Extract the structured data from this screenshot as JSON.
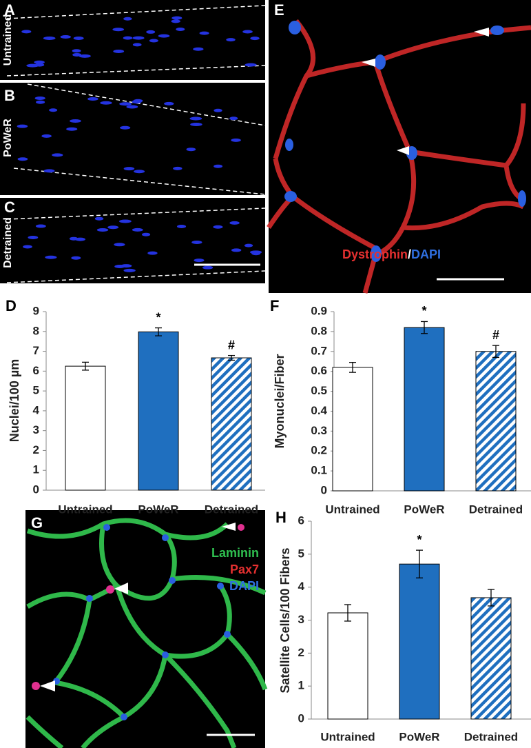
{
  "image_panels": [
    {
      "label": "A",
      "condition": "Untrained"
    },
    {
      "label": "B",
      "condition": "PoWeR"
    },
    {
      "label": "C",
      "condition": "Detrained"
    },
    {
      "label": "E",
      "stains": [
        "Dystrophin",
        "/",
        "DAPI"
      ]
    },
    {
      "label": "G",
      "stains": [
        "Laminin",
        "Pax7",
        "DAPI"
      ]
    }
  ],
  "chart_data": [
    {
      "type": "bar",
      "panel": "D",
      "y_label": "Nuclei/100 µm",
      "categories": [
        "Untrained",
        "PoWeR",
        "Detrained"
      ],
      "values": [
        6.25,
        7.98,
        6.67
      ],
      "errors": [
        0.2,
        0.2,
        0.12
      ],
      "value_annotations": [
        null,
        "*",
        "#"
      ],
      "colors": [
        "#ffffff",
        "#1f6fbf",
        "#1f6fbf"
      ],
      "fills": [
        "solid",
        "solid",
        "hatch"
      ],
      "ylim": [
        0,
        9
      ],
      "yticks": [
        0,
        1,
        2,
        3,
        4,
        5,
        6,
        7,
        8,
        9
      ]
    },
    {
      "type": "bar",
      "panel": "F",
      "y_label": "Myonuclei/Fiber",
      "categories": [
        "Untrained",
        "PoWeR",
        "Detrained"
      ],
      "values": [
        0.62,
        0.82,
        0.7
      ],
      "errors": [
        0.025,
        0.03,
        0.03
      ],
      "value_annotations": [
        null,
        "*",
        "#"
      ],
      "colors": [
        "#ffffff",
        "#1f6fbf",
        "#1f6fbf"
      ],
      "fills": [
        "solid",
        "solid",
        "hatch"
      ],
      "ylim": [
        0,
        0.9
      ],
      "yticks": [
        0,
        0.1,
        0.2,
        0.3,
        0.4,
        0.5,
        0.6,
        0.7,
        0.8,
        0.9
      ]
    },
    {
      "type": "bar",
      "panel": "H",
      "y_label": "Satellite Cells/100 Fibers",
      "categories": [
        "Untrained",
        "PoWeR",
        "Detrained"
      ],
      "values": [
        3.22,
        4.7,
        3.68
      ],
      "errors": [
        0.25,
        0.42,
        0.25
      ],
      "value_annotations": [
        null,
        "*",
        null
      ],
      "colors": [
        "#ffffff",
        "#1f6fbf",
        "#1f6fbf"
      ],
      "fills": [
        "solid",
        "solid",
        "hatch"
      ],
      "ylim": [
        0,
        6
      ],
      "yticks": [
        0,
        1,
        2,
        3,
        4,
        5,
        6
      ]
    }
  ]
}
